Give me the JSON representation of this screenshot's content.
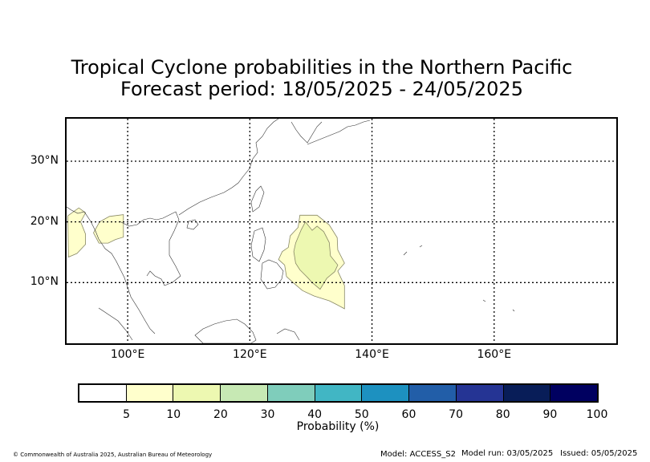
{
  "title": {
    "line1": "Tropical Cyclone probabilities in the Northern Pacific",
    "line2": "Forecast period: 18/05/2025 - 24/05/2025"
  },
  "map": {
    "lon_range": [
      90,
      180
    ],
    "lat_range": [
      0,
      37
    ],
    "lat_ticks": [
      {
        "value": 30,
        "label": "30°N"
      },
      {
        "value": 20,
        "label": "20°N"
      },
      {
        "value": 10,
        "label": "10°N"
      }
    ],
    "lon_ticks": [
      {
        "value": 100,
        "label": "100°E"
      },
      {
        "value": 120,
        "label": "120°E"
      },
      {
        "value": 140,
        "label": "140°E"
      },
      {
        "value": 160,
        "label": "160°E"
      }
    ],
    "gridlines": "dotted",
    "probability_regions": [
      {
        "name": "5-10% region, western Pacific",
        "band": "5-10",
        "color": "#ffffcc",
        "outline_lonlat": [
          [
            128.2,
            21.1
          ],
          [
            131.0,
            21.1
          ],
          [
            133.0,
            19.5
          ],
          [
            134.3,
            17.4
          ],
          [
            134.4,
            15.4
          ],
          [
            135.5,
            13.2
          ],
          [
            134.4,
            11.9
          ],
          [
            135.5,
            9.5
          ],
          [
            135.5,
            5.7
          ],
          [
            134.2,
            6.4
          ],
          [
            133.0,
            7.0
          ],
          [
            130.5,
            7.8
          ],
          [
            128.6,
            8.7
          ],
          [
            127.2,
            9.9
          ],
          [
            126.0,
            11.0
          ],
          [
            125.7,
            12.9
          ],
          [
            124.7,
            13.8
          ],
          [
            125.3,
            15.1
          ],
          [
            126.3,
            15.8
          ],
          [
            126.6,
            17.7
          ],
          [
            127.9,
            19.1
          ],
          [
            128.2,
            21.1
          ]
        ]
      },
      {
        "name": "10-20% region, western Pacific",
        "band": "10-20",
        "color": "#edf8b1",
        "outline_lonlat": [
          [
            129.1,
            20.0
          ],
          [
            130.2,
            18.6
          ],
          [
            131.0,
            19.3
          ],
          [
            132.1,
            18.4
          ],
          [
            133.0,
            16.6
          ],
          [
            133.2,
            14.4
          ],
          [
            134.4,
            12.9
          ],
          [
            133.9,
            11.8
          ],
          [
            132.6,
            10.7
          ],
          [
            131.5,
            8.9
          ],
          [
            130.2,
            10.0
          ],
          [
            129.5,
            10.8
          ],
          [
            128.2,
            12.1
          ],
          [
            127.5,
            13.2
          ],
          [
            127.2,
            15.1
          ],
          [
            127.5,
            16.5
          ],
          [
            128.4,
            18.7
          ],
          [
            129.1,
            20.0
          ]
        ]
      },
      {
        "name": "5-10% region, Bay of Bengal east",
        "band": "5-10",
        "color": "#ffffcc",
        "outline_lonlat": [
          [
            90.2,
            21.0
          ],
          [
            92.0,
            22.3
          ],
          [
            93.1,
            21.5
          ],
          [
            92.3,
            20.0
          ],
          [
            93.1,
            18.0
          ],
          [
            93.1,
            16.3
          ],
          [
            91.7,
            14.8
          ],
          [
            90.3,
            14.2
          ],
          [
            90.2,
            21.0
          ]
        ]
      },
      {
        "name": "5-10% region, Myanmar",
        "band": "5-10",
        "color": "#ffffcc",
        "outline_lonlat": [
          [
            94.4,
            18.2
          ],
          [
            95.4,
            20.0
          ],
          [
            97.0,
            20.9
          ],
          [
            99.3,
            21.2
          ],
          [
            99.3,
            17.5
          ],
          [
            98.0,
            17.1
          ],
          [
            96.8,
            16.5
          ],
          [
            95.3,
            16.5
          ],
          [
            94.4,
            18.2
          ]
        ]
      }
    ]
  },
  "colorbar": {
    "label": "Probability (%)",
    "ticks": [
      "5",
      "10",
      "20",
      "30",
      "40",
      "50",
      "60",
      "70",
      "80",
      "90",
      "100"
    ],
    "bands": [
      {
        "range": "0-5",
        "color": "#ffffff"
      },
      {
        "range": "5-10",
        "color": "#ffffcc"
      },
      {
        "range": "10-20",
        "color": "#edf8b1"
      },
      {
        "range": "20-30",
        "color": "#c7e9b4"
      },
      {
        "range": "30-40",
        "color": "#7fcdbb"
      },
      {
        "range": "40-50",
        "color": "#41b6c4"
      },
      {
        "range": "50-60",
        "color": "#1d91c0"
      },
      {
        "range": "60-70",
        "color": "#225ea8"
      },
      {
        "range": "70-80",
        "color": "#253494"
      },
      {
        "range": "80-90",
        "color": "#081d58"
      },
      {
        "range": "90-100",
        "color": "#000060"
      }
    ]
  },
  "footer": {
    "copyright": "© Commonwealth of Australia 2025, Australian Bureau of Meteorology",
    "model": "Model: ACCESS_S2",
    "model_run": "Model run: 03/05/2025",
    "issued": "Issued: 05/05/2025"
  }
}
